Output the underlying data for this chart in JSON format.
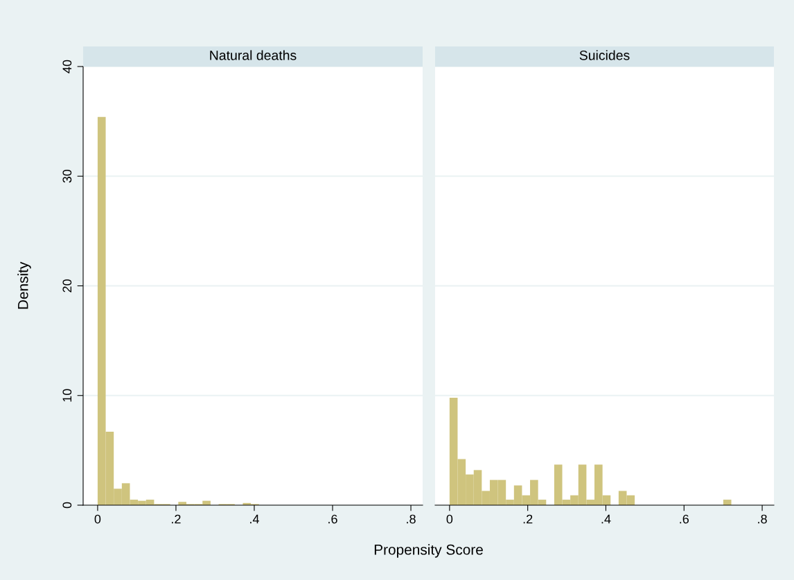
{
  "chart_data": [
    {
      "type": "histogram",
      "title": "Natural deaths",
      "ylabel": "Density",
      "color": "#cfc47e",
      "bins": [
        0,
        0.0206,
        0.0412,
        0.0618,
        0.0824,
        0.103,
        0.1236,
        0.1442,
        0.1648,
        0.1854,
        0.206,
        0.2266,
        0.2472,
        0.2678,
        0.2884,
        0.309,
        0.3296,
        0.3502,
        0.3708,
        0.3914,
        0.412
      ],
      "values": [
        35.4,
        6.7,
        1.5,
        2.0,
        0.5,
        0.4,
        0.5,
        0.1,
        0.1,
        0,
        0.3,
        0.1,
        0.1,
        0.4,
        0,
        0.1,
        0.1,
        0,
        0.2,
        0.1
      ],
      "xlim": [
        -0.037,
        0.83
      ],
      "xticks": [
        0,
        {
          "value": 0.2,
          "label": ".2"
        },
        {
          "value": 0.4,
          "label": ".4"
        },
        {
          "value": 0.6,
          "label": ".6"
        },
        {
          "value": 0.8,
          "label": ".8"
        }
      ],
      "ylim": [
        0,
        40
      ],
      "yticks": [
        0,
        10,
        20,
        30,
        40
      ],
      "grid": "y"
    },
    {
      "type": "histogram",
      "title": "Suicides",
      "xlabel": "Propensity Score",
      "color": "#cfc47e",
      "bins": [
        0,
        0.0206,
        0.0412,
        0.0618,
        0.0824,
        0.103,
        0.1236,
        0.1442,
        0.1648,
        0.1854,
        0.206,
        0.2266,
        0.2472,
        0.2678,
        0.2884,
        0.309,
        0.3296,
        0.3502,
        0.3708,
        0.3914,
        0.412,
        0.4326,
        0.4532,
        0.4738,
        0.4944,
        0.515,
        0.5356,
        0.5562,
        0.5768,
        0.5974,
        0.618,
        0.6386,
        0.6592,
        0.6798,
        0.7004,
        0.721
      ],
      "values": [
        9.8,
        4.2,
        2.8,
        3.2,
        1.3,
        2.3,
        2.3,
        0.5,
        1.8,
        0.9,
        2.3,
        0.5,
        0,
        3.7,
        0.5,
        0.9,
        3.7,
        0.5,
        3.7,
        0.9,
        0,
        1.3,
        0.9,
        0,
        0,
        0,
        0,
        0,
        0,
        0,
        0,
        0,
        0,
        0,
        0.5
      ],
      "xlim": [
        -0.037,
        0.83
      ],
      "xticks": [
        0,
        {
          "value": 0.2,
          "label": ".2"
        },
        {
          "value": 0.4,
          "label": ".4"
        },
        {
          "value": 0.6,
          "label": ".6"
        },
        {
          "value": 0.8,
          "label": ".8"
        }
      ],
      "ylim": [
        0,
        40
      ],
      "yticks": [
        0,
        10,
        20,
        30,
        40
      ],
      "grid": "y",
      "tick_labels": "x"
    }
  ]
}
